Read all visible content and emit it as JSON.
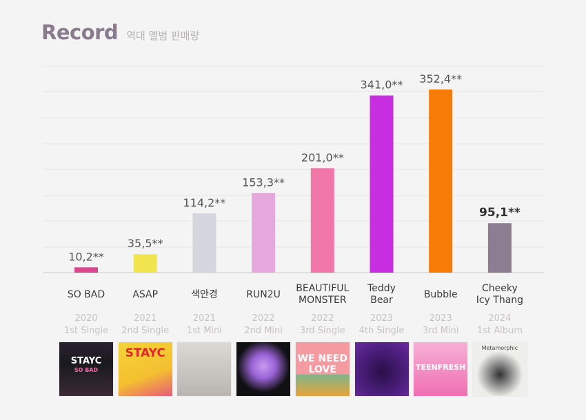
{
  "header": {
    "title": "Record",
    "subtitle": "역대 앨범 판매량"
  },
  "chart_data": {
    "type": "bar",
    "categories": [
      "SO BAD",
      "ASAP",
      "색안경",
      "RUN2U",
      "BEAUTIFUL MONSTER",
      "Teddy Bear",
      "Bubble",
      "Cheeky Icy Thang"
    ],
    "category_lines": [
      [
        "SO BAD"
      ],
      [
        "ASAP"
      ],
      [
        "색안경"
      ],
      [
        "RUN2U"
      ],
      [
        "BEAUTIFUL",
        "MONSTER"
      ],
      [
        "Teddy",
        "Bear"
      ],
      [
        "Bubble"
      ],
      [
        "Cheeky",
        "Icy Thang"
      ]
    ],
    "values": [
      10.2,
      35.5,
      114.2,
      153.3,
      201.0,
      341.0,
      352.4,
      95.1
    ],
    "value_labels": [
      "10,2**",
      "35,5**",
      "114,2**",
      "153,3**",
      "201,0**",
      "341,0**",
      "352,4**",
      "95,1**"
    ],
    "years": [
      "2020",
      "2021",
      "2021",
      "2022",
      "2022",
      "2023",
      "2023",
      "2024"
    ],
    "release_types": [
      "1st Single",
      "2nd Single",
      "1st Mini",
      "2nd Mini",
      "3rd Single",
      "4th Single",
      "3rd Mini",
      "1st Album"
    ],
    "colors": [
      "#d9478f",
      "#f0e44f",
      "#d3d6dd",
      "#e6a8dc",
      "#f077a8",
      "#c72ee0",
      "#f77c07",
      "#8c7d90"
    ],
    "highlight_index": 7,
    "ylim": [
      0,
      400
    ],
    "grid": true,
    "legend": "none"
  },
  "covers": [
    {
      "text": "STAYC",
      "subtext": "SO BAD",
      "bg": "#1a1a1f",
      "fg": "#ffffff"
    },
    {
      "text": "STAYC",
      "subtext": "",
      "bg": "#f4d43a",
      "fg": "#e2262b"
    },
    {
      "text": "",
      "subtext": "",
      "bg": "#c9c6c2",
      "fg": "#222222"
    },
    {
      "text": "",
      "subtext": "",
      "bg": "#111114",
      "fg": "#b888e8"
    },
    {
      "text": "WE NEED",
      "subtext": "LOVE",
      "bg": "#f59aa0",
      "fg": "#ffffff"
    },
    {
      "text": "",
      "subtext": "",
      "bg": "#4a1e7a",
      "fg": "#f0c419"
    },
    {
      "text": "TEENFRESH",
      "subtext": "",
      "bg": "#f06fb4",
      "fg": "#ffffff"
    },
    {
      "text": "Metamorphic",
      "subtext": "",
      "bg": "#eeeeea",
      "fg": "#444444"
    }
  ]
}
